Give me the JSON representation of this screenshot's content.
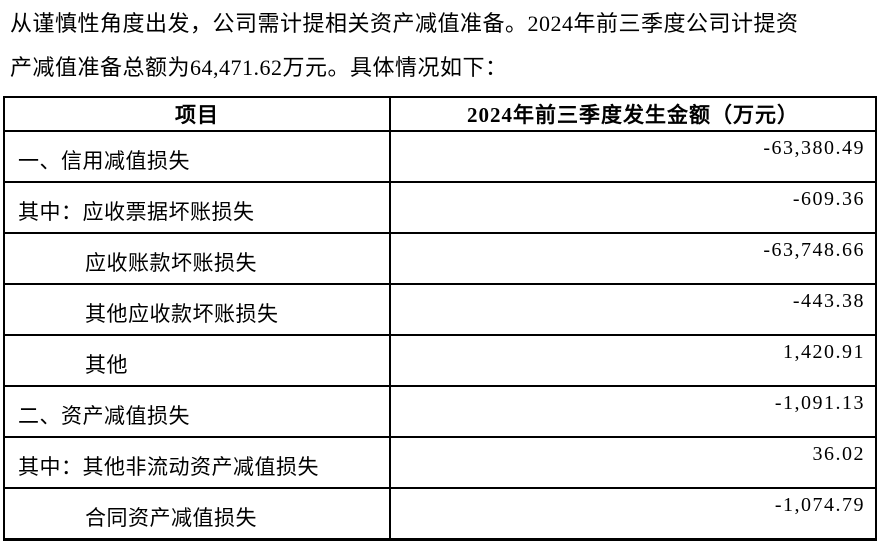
{
  "document": {
    "intro_lines": [
      "从谨慎性角度出发，公司需计提相关资产减值准备。2024年前三季度公司计提资",
      "产减值准备总额为64,471.62万元。具体情况如下："
    ]
  },
  "table": {
    "header": {
      "item": "项目",
      "amount": "2024年前三季度发生金额（万元）"
    },
    "rows": [
      {
        "label": "一、信用减值损失",
        "value": "-63,380.49",
        "level": 0
      },
      {
        "label": "其中：应收票据坏账损失",
        "value": "-609.36",
        "level": 0
      },
      {
        "label": "应收账款坏账损失",
        "value": "-63,748.66",
        "level": 1
      },
      {
        "label": "其他应收款坏账损失",
        "value": "-443.38",
        "level": 1
      },
      {
        "label": "其他",
        "value": "1,420.91",
        "level": 1
      },
      {
        "label": "二、资产减值损失",
        "value": "-1,091.13",
        "level": 0
      },
      {
        "label": "其中：其他非流动资产减值损失",
        "value": "36.02",
        "level": 0
      },
      {
        "label": "合同资产减值损失",
        "value": "-1,074.79",
        "level": 1
      }
    ]
  },
  "colors": {
    "text": "#000000",
    "border": "#000000",
    "background": "#ffffff"
  }
}
